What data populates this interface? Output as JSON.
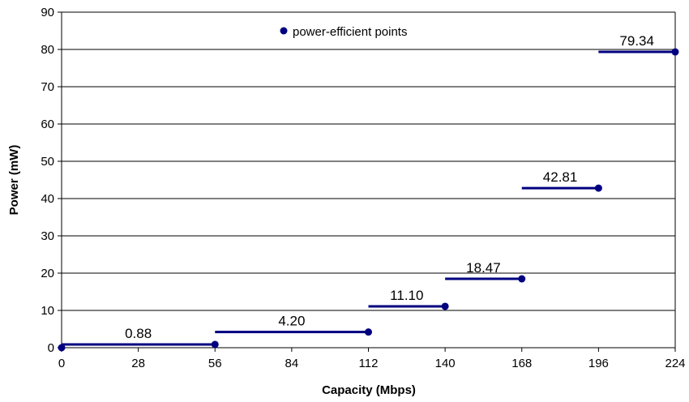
{
  "chart_data": {
    "type": "line",
    "title": "",
    "xlabel": "Capacity (Mbps)",
    "ylabel": "Power (mW)",
    "xlim": [
      0,
      224
    ],
    "ylim": [
      0,
      90
    ],
    "xticks": [
      0,
      28,
      56,
      84,
      112,
      140,
      168,
      196,
      224
    ],
    "yticks": [
      0,
      10,
      20,
      30,
      40,
      50,
      60,
      70,
      80,
      90
    ],
    "grid": "horizontal",
    "legend": {
      "position": "top-center",
      "entries": [
        "power-efficient points"
      ]
    },
    "colors": {
      "series": "#000080"
    },
    "segments": [
      {
        "x_start": 0,
        "x_end": 56,
        "y": 0.88,
        "label": "0.88"
      },
      {
        "x_start": 56,
        "x_end": 112,
        "y": 4.2,
        "label": "4.20"
      },
      {
        "x_start": 112,
        "x_end": 140,
        "y": 11.1,
        "label": "11.10"
      },
      {
        "x_start": 140,
        "x_end": 168,
        "y": 18.47,
        "label": "18.47"
      },
      {
        "x_start": 168,
        "x_end": 196,
        "y": 42.81,
        "label": "42.81"
      },
      {
        "x_start": 196,
        "x_end": 224,
        "y": 79.34,
        "label": "79.34"
      }
    ],
    "points": [
      {
        "x": 0,
        "y": 0
      },
      {
        "x": 56,
        "y": 0.88
      },
      {
        "x": 112,
        "y": 4.2
      },
      {
        "x": 140,
        "y": 11.1
      },
      {
        "x": 168,
        "y": 18.47
      },
      {
        "x": 196,
        "y": 42.81
      },
      {
        "x": 224,
        "y": 79.34
      }
    ]
  }
}
